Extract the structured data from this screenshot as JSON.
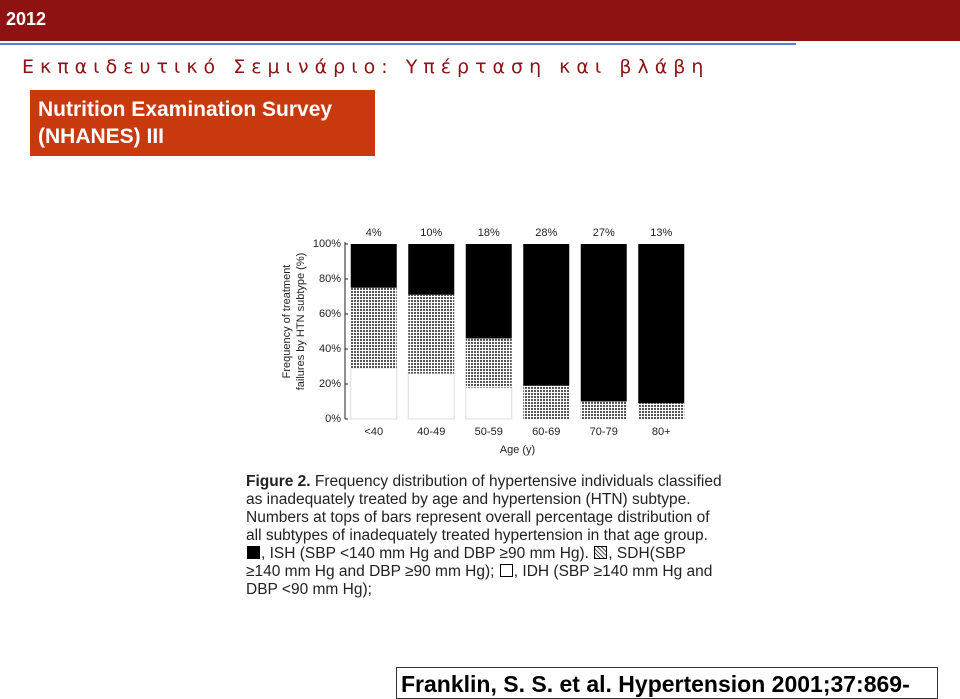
{
  "header": {
    "year": "2012",
    "subtitle": "Εκπαιδευτικό Σεμινάριο: Υπέρταση και βλάβη",
    "box": [
      "Nutrition Examination Survey",
      "(NHANES) III"
    ]
  },
  "chart_data": {
    "type": "stacked_bar",
    "categories": [
      "<40",
      "40-49",
      "50-59",
      "60-69",
      "70-79",
      "80+"
    ],
    "top_labels": [
      "4%",
      "10%",
      "18%",
      "28%",
      "27%",
      "13%"
    ],
    "series": [
      {
        "name": "IDH",
        "color": "#ffffff",
        "values": [
          29,
          26,
          18,
          0,
          0,
          0
        ]
      },
      {
        "name": "SDH",
        "color": "#9a9a9a",
        "pattern": "dots",
        "values": [
          46,
          45,
          28,
          19,
          10,
          9
        ]
      },
      {
        "name": "ISH",
        "color": "#000000",
        "values": [
          25,
          29,
          54,
          81,
          90,
          91
        ]
      }
    ],
    "ylim": [
      0,
      100
    ],
    "yticks": [
      {
        "value": 0,
        "label": "0%"
      },
      {
        "value": 20,
        "label": "20%"
      },
      {
        "value": 40,
        "label": "40%"
      },
      {
        "value": 60,
        "label": "60%"
      },
      {
        "value": 80,
        "label": "80%"
      },
      {
        "value": 100,
        "label": "100%"
      }
    ],
    "ylabel": [
      "Frequency of treatment",
      "failures by HTN subtype (%)"
    ],
    "xlabel": "Age (y)"
  },
  "caption": {
    "label": "Figure 2.",
    "text": "Frequency distribution of hypertensive individuals classified as inadequately treated by age and hypertension (HTN) subtype. Numbers at tops of bars represent overall percentage distribution of all subtypes of inadequately treated hypertension in that age group.",
    "separator": ",",
    "legend_order": [
      2,
      1,
      0
    ],
    "legend_suffix": [
      " (SBP <140 mm Hg and DBP ≥90 mm Hg).",
      "(SBP ≥140 mm Hg and DBP ≥90 mm Hg);",
      " (SBP ≥140 mm Hg and DBP <90 mm Hg);"
    ]
  },
  "citation": "Franklin, S. S. et al. Hypertension 2001;37:869-"
}
